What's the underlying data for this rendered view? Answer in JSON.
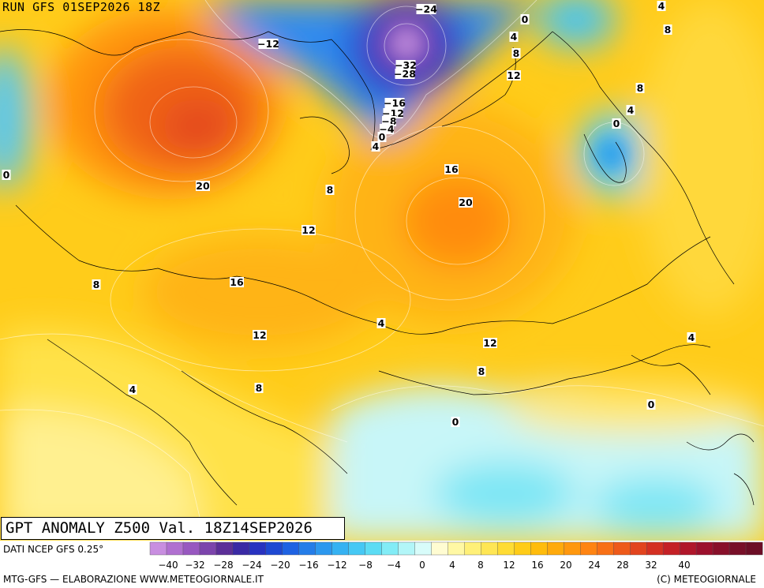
{
  "header": {
    "run_label": "RUN GFS 01SEP2026 18Z"
  },
  "title_box": {
    "title": "GPT ANOMALY Z500 Val. 18Z14SEP2026"
  },
  "source": {
    "label": "DATI NCEP GFS 0.25°"
  },
  "footer": {
    "left": "MTG-GFS — ELABORAZIONE WWW.METEOGIORNALE.IT",
    "right": "(C) METEOGIORNALE"
  },
  "legend": {
    "tick_labels": [
      "−40",
      "−32",
      "−28",
      "−24",
      "−20",
      "−16",
      "−12",
      "−8",
      "−4",
      "0",
      "4",
      "8",
      "12",
      "16",
      "20",
      "24",
      "28",
      "32",
      "40"
    ],
    "colors": [
      "#c88ee0",
      "#b070d0",
      "#9858c0",
      "#7c44ac",
      "#5c2f98",
      "#3a2aa4",
      "#2832c0",
      "#1e48d2",
      "#1e62e2",
      "#247de8",
      "#2c98ee",
      "#36b2f2",
      "#46c8f4",
      "#5cdcf4",
      "#82ecf6",
      "#b2f6f8",
      "#d8fcfa",
      "#fffcd2",
      "#fff8a4",
      "#fff078",
      "#ffe654",
      "#ffdc34",
      "#ffcc18",
      "#ffbc0c",
      "#ffaa0c",
      "#ff980e",
      "#ff8412",
      "#f87016",
      "#ee5a1a",
      "#e2441e",
      "#d43022",
      "#c42026",
      "#b0162a",
      "#9c102c",
      "#88102a",
      "#780f28",
      "#6c0e26"
    ]
  },
  "map": {
    "contour_labels": [
      {
        "text": "−24"
      },
      {
        "text": "−12"
      },
      {
        "text": "−32"
      },
      {
        "text": "−28"
      },
      {
        "text": "−16"
      },
      {
        "text": "−12"
      },
      {
        "text": "−8"
      },
      {
        "text": "−4"
      },
      {
        "text": "0"
      },
      {
        "text": "4"
      },
      {
        "text": "0"
      },
      {
        "text": "4"
      },
      {
        "text": "8"
      },
      {
        "text": "12"
      },
      {
        "text": "4"
      },
      {
        "text": "8"
      },
      {
        "text": "8"
      },
      {
        "text": "4"
      },
      {
        "text": "0"
      },
      {
        "text": "0"
      },
      {
        "text": "20"
      },
      {
        "text": "8"
      },
      {
        "text": "12"
      },
      {
        "text": "16"
      },
      {
        "text": "20"
      },
      {
        "text": "8"
      },
      {
        "text": "16"
      },
      {
        "text": "12"
      },
      {
        "text": "4"
      },
      {
        "text": "12"
      },
      {
        "text": "8"
      },
      {
        "text": "8"
      },
      {
        "text": "4"
      },
      {
        "text": "4"
      },
      {
        "text": "0"
      },
      {
        "text": "0"
      }
    ]
  }
}
